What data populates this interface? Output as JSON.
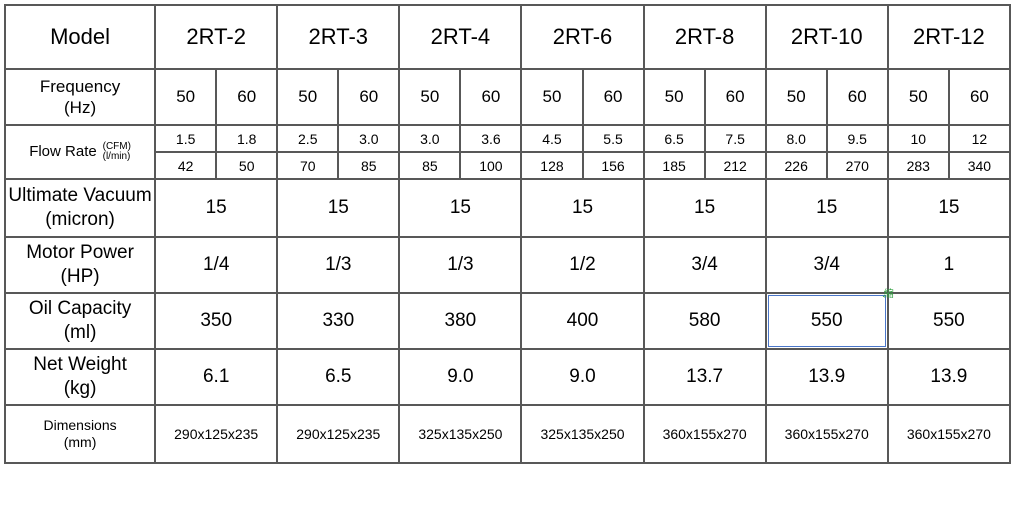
{
  "labels": {
    "model": "Model",
    "frequency_l1": "Frequency",
    "frequency_l2": "(Hz)",
    "flow_rate": "Flow Rate",
    "flow_cfm": "(CFM)",
    "flow_lmin": "(l/min)",
    "vacuum_l1": "Ultimate Vacuum",
    "vacuum_l2": "(micron)",
    "motor_l1": "Motor Power",
    "motor_l2": "(HP)",
    "oil_l1": "Oil Capacity",
    "oil_l2": "(ml)",
    "weight_l1": "Net Weight",
    "weight_l2": "(kg)",
    "dim_l1": "Dimensions",
    "dim_l2": "(mm)"
  },
  "models": [
    "2RT-2",
    "2RT-3",
    "2RT-4",
    "2RT-6",
    "2RT-8",
    "2RT-10",
    "2RT-12"
  ],
  "frequency": {
    "2RT-2": [
      "50",
      "60"
    ],
    "2RT-3": [
      "50",
      "60"
    ],
    "2RT-4": [
      "50",
      "60"
    ],
    "2RT-6": [
      "50",
      "60"
    ],
    "2RT-8": [
      "50",
      "60"
    ],
    "2RT-10": [
      "50",
      "60"
    ],
    "2RT-12": [
      "50",
      "60"
    ]
  },
  "flow_cfm": {
    "2RT-2": [
      "1.5",
      "1.8"
    ],
    "2RT-3": [
      "2.5",
      "3.0"
    ],
    "2RT-4": [
      "3.0",
      "3.6"
    ],
    "2RT-6": [
      "4.5",
      "5.5"
    ],
    "2RT-8": [
      "6.5",
      "7.5"
    ],
    "2RT-10": [
      "8.0",
      "9.5"
    ],
    "2RT-12": [
      "10",
      "12"
    ]
  },
  "flow_lmin": {
    "2RT-2": [
      "42",
      "50"
    ],
    "2RT-3": [
      "70",
      "85"
    ],
    "2RT-4": [
      "85",
      "100"
    ],
    "2RT-6": [
      "128",
      "156"
    ],
    "2RT-8": [
      "185",
      "212"
    ],
    "2RT-10": [
      "226",
      "270"
    ],
    "2RT-12": [
      "283",
      "340"
    ]
  },
  "vacuum": {
    "2RT-2": "15",
    "2RT-3": "15",
    "2RT-4": "15",
    "2RT-6": "15",
    "2RT-8": "15",
    "2RT-10": "15",
    "2RT-12": "15"
  },
  "motor": {
    "2RT-2": "1/4",
    "2RT-3": "1/3",
    "2RT-4": "1/3",
    "2RT-6": "1/2",
    "2RT-8": "3/4",
    "2RT-10": "3/4",
    "2RT-12": "1"
  },
  "oil": {
    "2RT-2": "350",
    "2RT-3": "330",
    "2RT-4": "380",
    "2RT-6": "400",
    "2RT-8": "580",
    "2RT-10": "550",
    "2RT-12": "550"
  },
  "weight": {
    "2RT-2": "6.1",
    "2RT-3": "6.5",
    "2RT-4": "9.0",
    "2RT-6": "9.0",
    "2RT-8": "13.7",
    "2RT-10": "13.9",
    "2RT-12": "13.9"
  },
  "dimensions": {
    "2RT-2": "290x125x235",
    "2RT-3": "290x125x235",
    "2RT-4": "325x135x250",
    "2RT-6": "325x135x250",
    "2RT-8": "360x155x270",
    "2RT-10": "360x155x270",
    "2RT-12": "360x155x270"
  },
  "highlight_cell": {
    "row": "oil",
    "model": "2RT-10"
  },
  "cursor_text": ".縮"
}
